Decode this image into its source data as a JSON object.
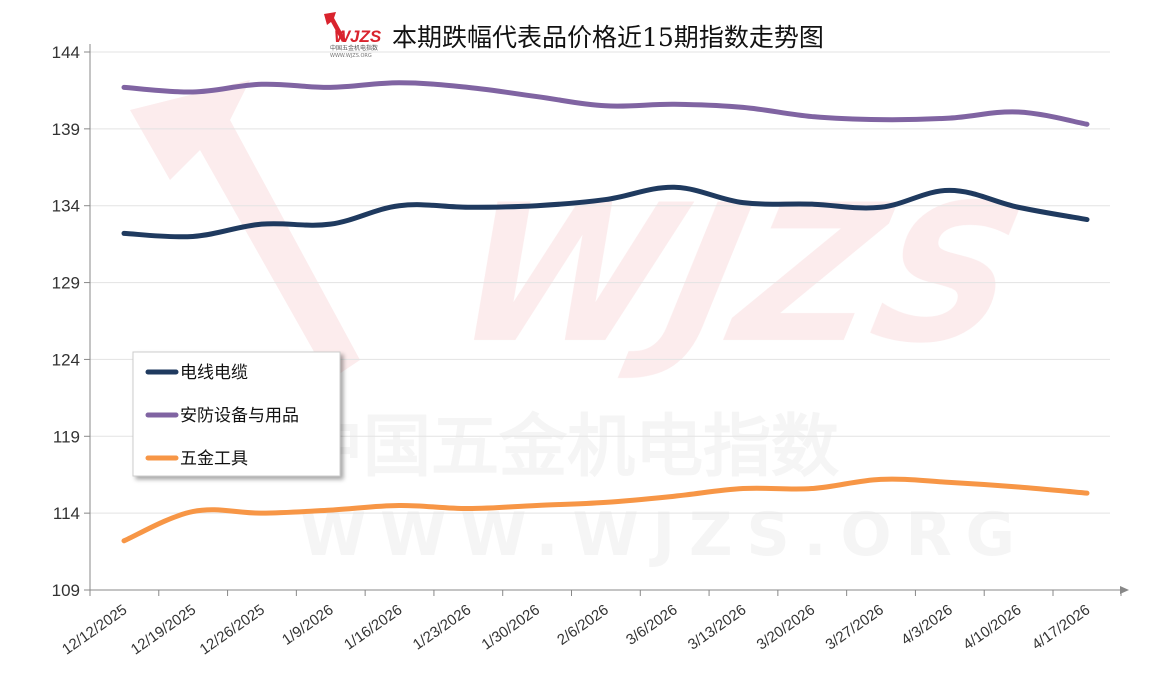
{
  "chart_data": {
    "type": "line",
    "title": "本期跌幅代表品价格近15期指数走势图",
    "logo": {
      "text": "WJZS",
      "subtext": "中国五金机电指数",
      "url_text": "WWW.WJZS.ORG"
    },
    "watermark": {
      "text": "WJZS",
      "subtext": "中国五金机电指数",
      "url_text": "WWW.WJZS.ORG"
    },
    "xlabel": "",
    "ylabel": "",
    "ylim": [
      109,
      144
    ],
    "yticks": [
      109,
      114,
      119,
      124,
      129,
      134,
      139,
      144
    ],
    "grid": true,
    "legend_placement": "center-left",
    "categories": [
      "12/12/2025",
      "12/19/2025",
      "12/26/2025",
      "1/9/2026",
      "1/16/2026",
      "1/23/2026",
      "1/30/2026",
      "2/6/2026",
      "3/6/2026",
      "3/13/2026",
      "3/20/2026",
      "3/27/2026",
      "4/3/2026",
      "4/10/2026",
      "4/17/2026"
    ],
    "series": [
      {
        "name": "电线电缆",
        "color": "#1f3a5f",
        "values": [
          132.2,
          132.0,
          132.8,
          132.8,
          134.0,
          133.9,
          134.0,
          134.4,
          135.2,
          134.2,
          134.1,
          133.9,
          135.0,
          133.9,
          133.1
        ]
      },
      {
        "name": "安防设备与用品",
        "color": "#8064a2",
        "values": [
          141.7,
          141.4,
          141.9,
          141.7,
          142.0,
          141.7,
          141.1,
          140.5,
          140.6,
          140.4,
          139.8,
          139.6,
          139.7,
          140.1,
          139.3
        ]
      },
      {
        "name": "五金工具",
        "color": "#f79646",
        "values": [
          112.2,
          114.1,
          114.0,
          114.2,
          114.5,
          114.3,
          114.5,
          114.7,
          115.1,
          115.6,
          115.6,
          116.2,
          116.0,
          115.7,
          115.3
        ]
      }
    ]
  }
}
